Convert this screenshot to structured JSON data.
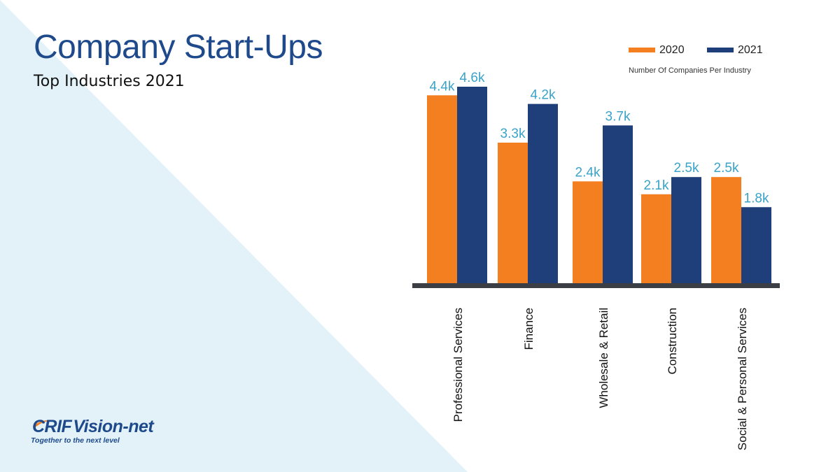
{
  "header": {
    "title": "Company Start-Ups",
    "subtitle": "Top Industries 2021"
  },
  "chart_note": "Number Of Companies Per Industry",
  "logo": {
    "wordmark": "CRIF Vision-net",
    "tagline": "Together to the next level"
  },
  "colors": {
    "series_2020": "#f47f20",
    "series_2021": "#1f3f7a",
    "value_label": "#39a3c9",
    "baseline": "#3b3f45",
    "background_triangle": "#e3f2f9",
    "title": "#1e4a8c"
  },
  "chart_data": {
    "type": "bar",
    "categories": [
      "Professional Services",
      "Finance",
      "Wholesale & Retail",
      "Construction",
      "Social & Personal Services"
    ],
    "series": [
      {
        "name": "2020",
        "values": [
          4.4,
          3.3,
          2.4,
          2.1,
          2.5
        ],
        "labels": [
          "4.4k",
          "3.3k",
          "2.4k",
          "2.1k",
          "2.5k"
        ]
      },
      {
        "name": "2021",
        "values": [
          4.6,
          4.2,
          3.7,
          2.5,
          1.8
        ],
        "labels": [
          "4.6k",
          "4.2k",
          "3.7k",
          "2.5k",
          "1.8k"
        ]
      }
    ],
    "title": "",
    "xlabel": "",
    "ylabel": "Number Of Companies Per Industry",
    "ylim": [
      0,
      4.6
    ],
    "grid": false,
    "legend": "top-right"
  }
}
